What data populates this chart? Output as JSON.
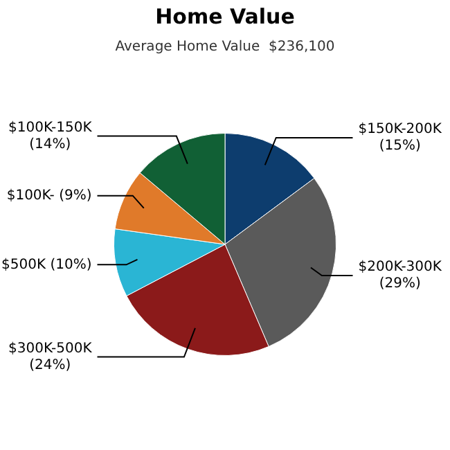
{
  "chart_data": {
    "type": "pie",
    "title": "Home Value",
    "subtitle": "Average Home Value  $236,100",
    "categories": [
      "$150K-200K",
      "$200K-300K",
      "$300K-500K",
      "$500K",
      "$100K-",
      "$100K-150K"
    ],
    "values": [
      15,
      29,
      24,
      10,
      9,
      14
    ],
    "value_labels": [
      "(15%)",
      "(29%)",
      "(24%)",
      "(10%)",
      "(9%)",
      "(14%)"
    ],
    "colors": [
      "#0d3d6e",
      "#5a5a5a",
      "#8b1a1a",
      "#2ab5d4",
      "#e07a2a",
      "#116035"
    ],
    "legend": false
  }
}
